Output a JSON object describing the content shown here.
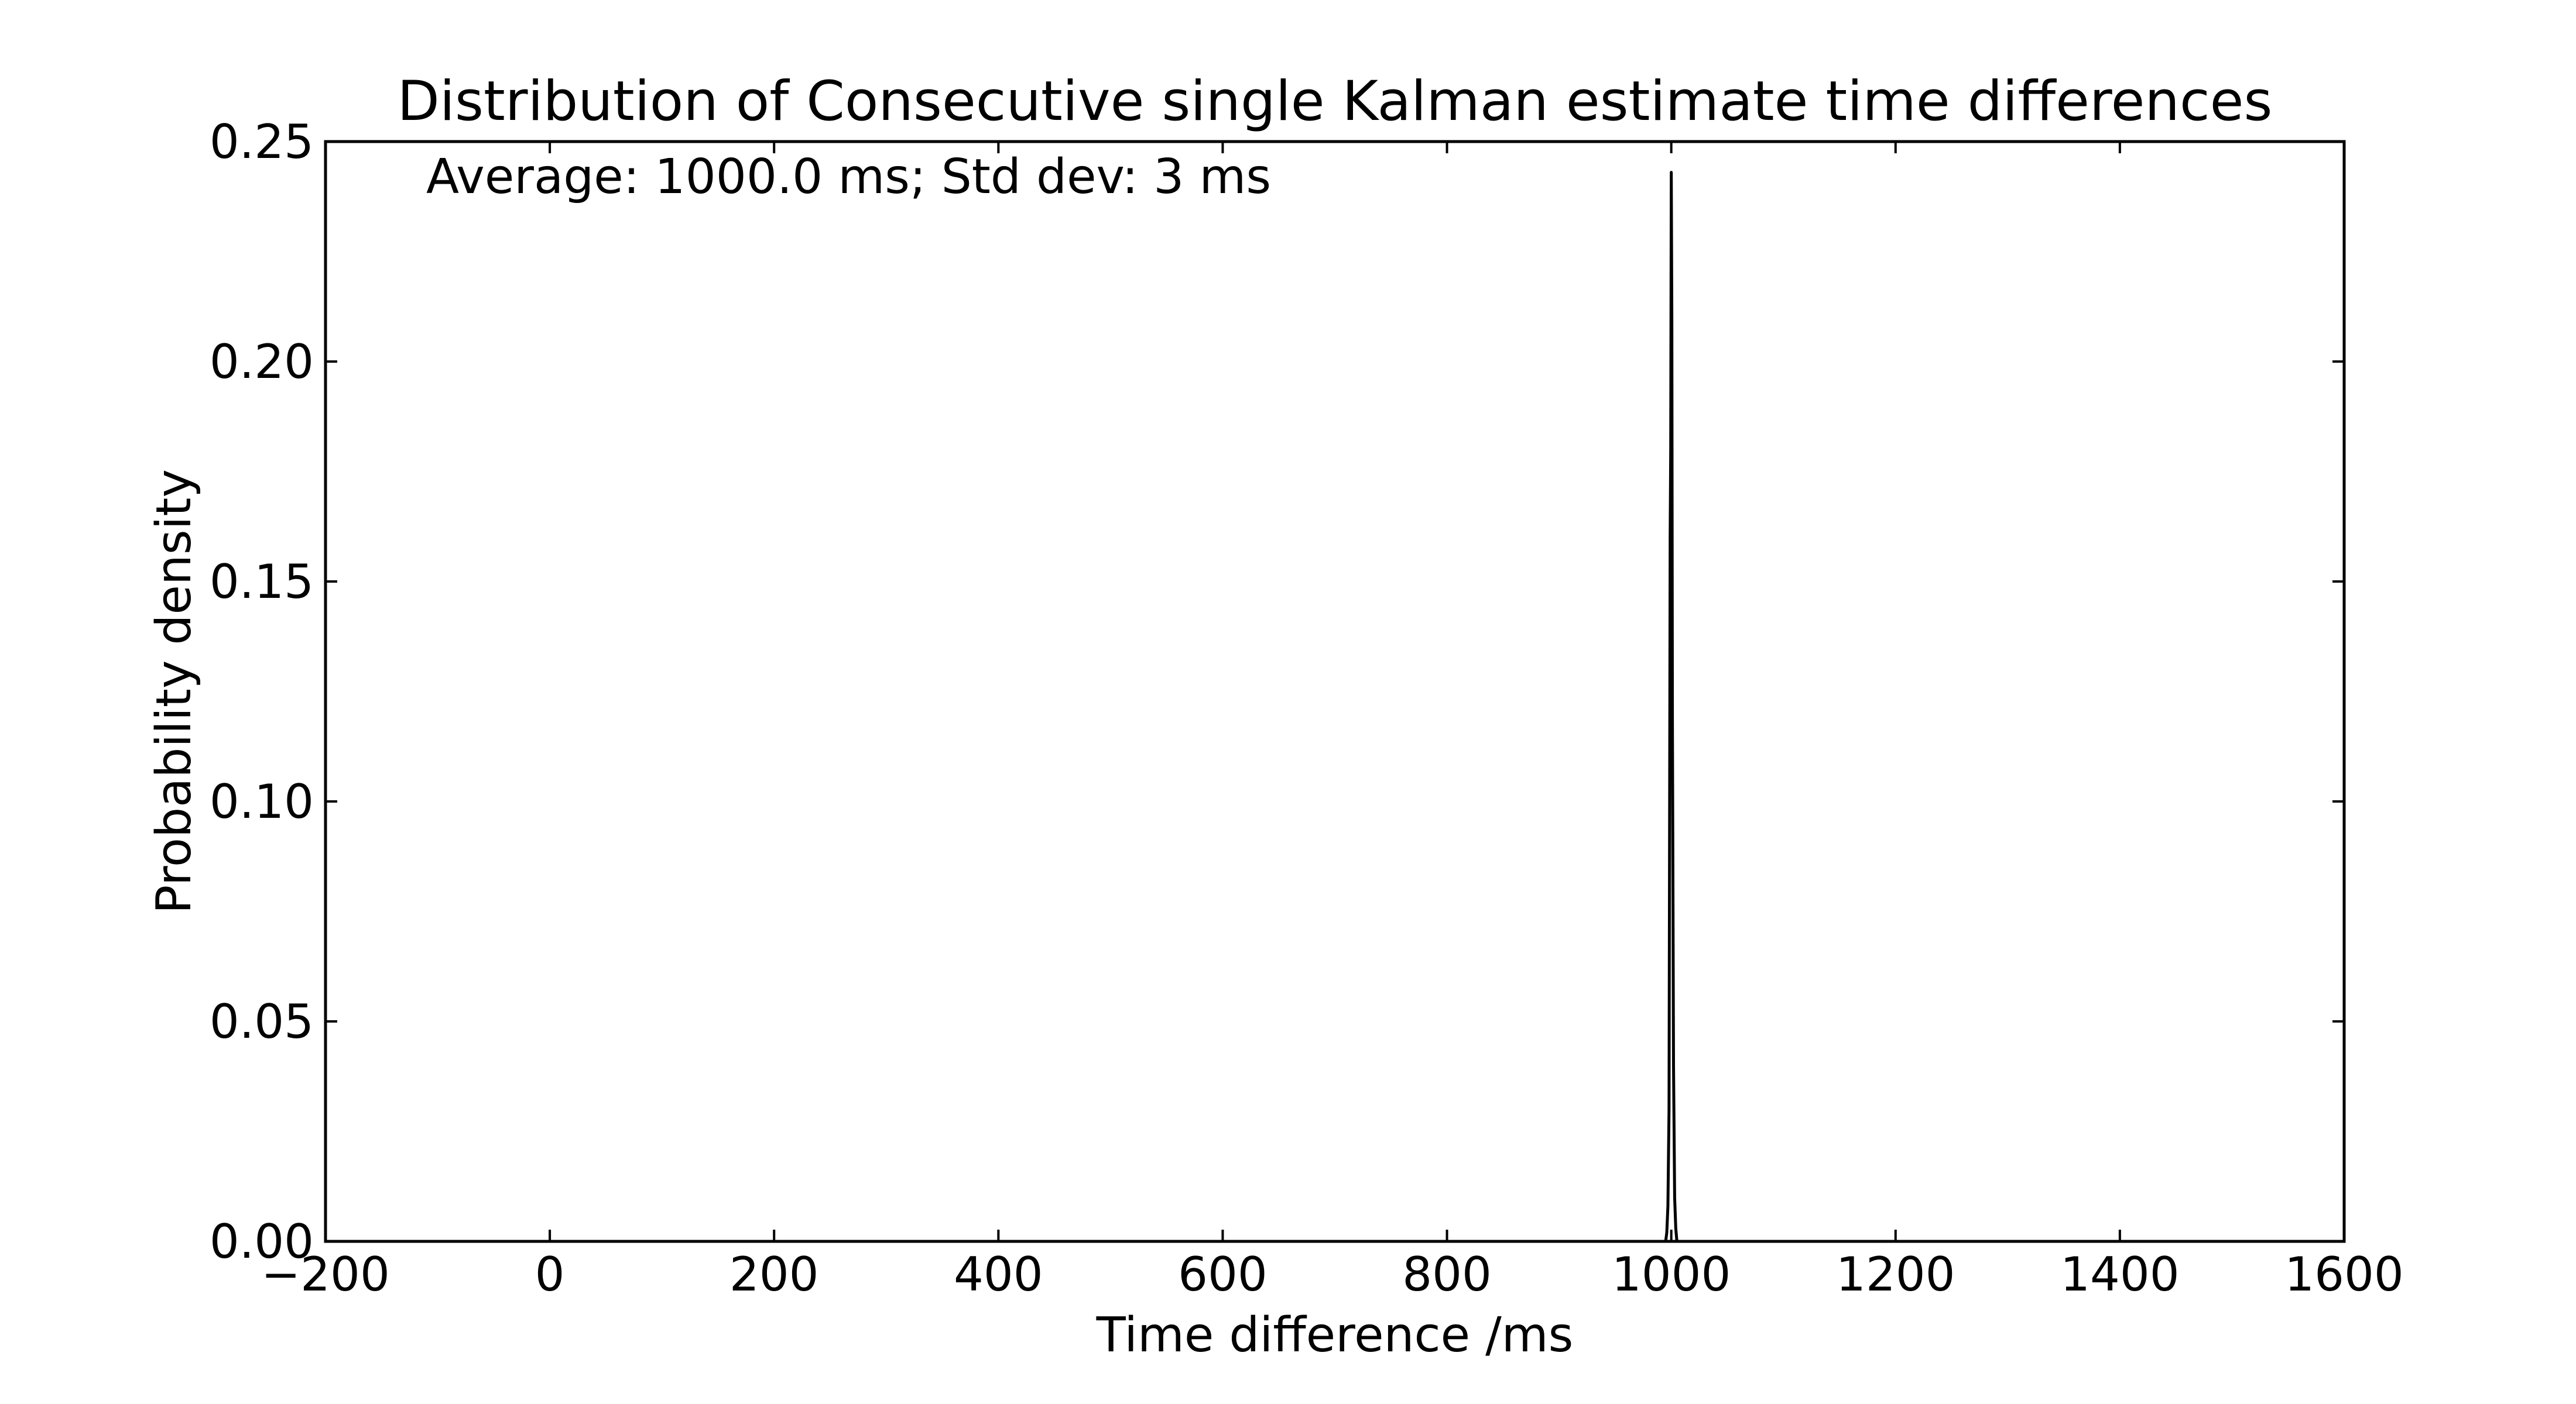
{
  "chart_data": {
    "type": "line",
    "title": "Distribution of Consecutive single Kalman estimate time differences",
    "xlabel": "Time difference /ms",
    "ylabel": "Probability density",
    "annotation": "Average: 1000.0 ms;  Std dev: 3 ms",
    "xlim": [
      -200,
      1600
    ],
    "ylim": [
      0,
      0.25
    ],
    "x_ticks": [
      -200,
      0,
      200,
      400,
      600,
      800,
      1000,
      1200,
      1400,
      1600
    ],
    "x_tick_labels": [
      "−200",
      "0",
      "200",
      "400",
      "600",
      "800",
      "1000",
      "1200",
      "1400",
      "1600"
    ],
    "y_ticks": [
      0,
      0.05,
      0.1,
      0.15,
      0.2,
      0.25
    ],
    "y_tick_labels": [
      "0.00",
      "0.05",
      "0.10",
      "0.15",
      "0.20",
      "0.25"
    ],
    "grid": false,
    "legend": "none",
    "line_color": "#000000",
    "series": [
      {
        "x": [
          995,
          996,
          997,
          998,
          999,
          999.5,
          1000,
          1000.5,
          1001,
          1002,
          1003,
          1004,
          1005
        ],
        "y": [
          0,
          0.002,
          0.008,
          0.03,
          0.16,
          0.18,
          0.243,
          0.21,
          0.12,
          0.04,
          0.01,
          0.003,
          0
        ]
      }
    ]
  }
}
